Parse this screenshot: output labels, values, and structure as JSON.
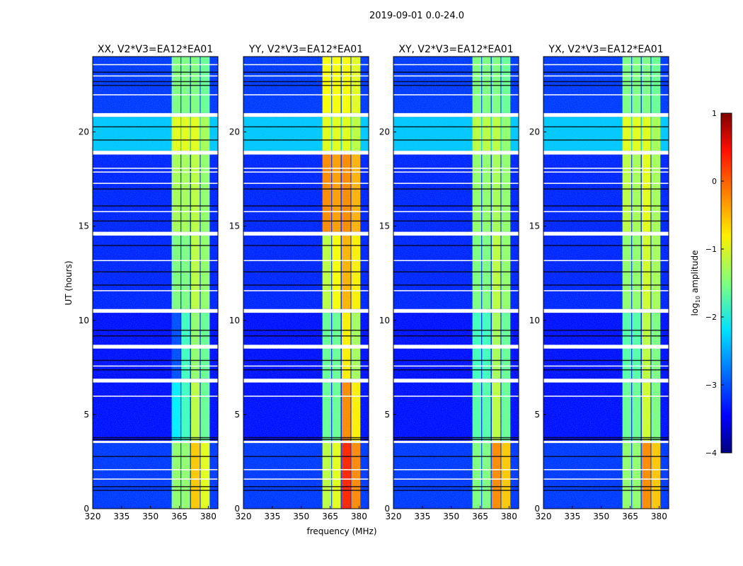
{
  "chart_data": {
    "type": "heatmap",
    "title": "2019-09-01 0.0-24.0",
    "xlabel": "frequency (MHz)",
    "ylabel": "UT (hours)",
    "xlim": [
      320,
      385
    ],
    "ylim": [
      0,
      24
    ],
    "xticks": [
      320,
      335,
      350,
      365,
      380
    ],
    "yticks": [
      0,
      5,
      10,
      15,
      20
    ],
    "colorbar": {
      "label": "log10 amplitude",
      "range": [
        -4,
        1
      ],
      "ticks": [
        1,
        0,
        -1,
        -2,
        -3,
        -4
      ],
      "tick_labels": [
        "1",
        "0",
        "−1",
        "−2",
        "−3",
        "−4"
      ],
      "colormap": "jet"
    },
    "bands_mhz": [
      [
        361,
        365.6
      ],
      [
        366,
        370.5
      ],
      [
        371,
        375.6
      ],
      [
        376,
        380.7
      ]
    ],
    "time_segments_ut": [
      [
        0,
        3.5
      ],
      [
        3.6,
        6.7
      ],
      [
        6.9,
        10.4
      ],
      [
        10.6,
        14.5
      ],
      [
        14.7,
        18.8
      ],
      [
        19.0,
        20.8
      ],
      [
        21.0,
        24
      ]
    ],
    "background_levels": [
      -3.1,
      -3.3,
      -3.3,
      -3.2,
      -3.2,
      -2.4,
      -3.1
    ],
    "flagged_ut": [
      [
        20.8,
        21.0
      ],
      [
        18.8,
        19.0
      ],
      [
        14.5,
        14.7
      ],
      [
        10.4,
        10.6
      ],
      [
        8.5,
        8.7
      ],
      [
        6.7,
        6.9
      ],
      [
        3.5,
        3.6
      ]
    ],
    "dark_lines_ut": [
      1.0,
      1.2,
      2.8,
      3.7,
      3.8,
      7.4,
      7.9,
      9.2,
      9.5,
      11.9,
      12.6,
      14.0,
      15.3,
      16.1,
      17.0,
      19.6,
      20.3,
      22.5,
      22.7,
      23.2
    ],
    "white_lines_ut": [
      1.6,
      2.1,
      6.0,
      7.6,
      11.6,
      13.2,
      15.8,
      17.3,
      17.9,
      18.1,
      22.0,
      23.0,
      23.6
    ],
    "panels": [
      {
        "title": "XX, V2*V3=EA12*EA01",
        "band_levels": [
          [
            -1.4,
            -1.4,
            -0.6,
            -1.0
          ],
          [
            -2.2,
            -1.8,
            -1.2,
            -1.6
          ],
          [
            -3.0,
            -1.8,
            -1.4,
            -1.6
          ],
          [
            -1.5,
            -1.5,
            -1.2,
            -1.4
          ],
          [
            -1.3,
            -1.3,
            -1.2,
            -1.4
          ],
          [
            -1.0,
            -1.0,
            -1.0,
            -1.3
          ],
          [
            -1.5,
            -1.5,
            -1.5,
            -1.6
          ]
        ]
      },
      {
        "title": "YY, V2*V3=EA12*EA01",
        "band_levels": [
          [
            -1.2,
            -1.0,
            0.2,
            -0.3
          ],
          [
            -1.6,
            -1.6,
            -0.3,
            -0.8
          ],
          [
            -1.6,
            -1.6,
            -0.8,
            -1.3
          ],
          [
            -1.2,
            -0.9,
            -0.5,
            -0.8
          ],
          [
            -0.3,
            -0.4,
            -0.3,
            -0.5
          ],
          [
            -1.0,
            -1.0,
            -1.0,
            -1.2
          ],
          [
            -0.9,
            -0.9,
            -0.9,
            -1.0
          ]
        ]
      },
      {
        "title": "XY, V2*V3=EA12*EA01",
        "band_levels": [
          [
            -1.5,
            -1.5,
            -0.3,
            -0.6
          ],
          [
            -1.7,
            -1.7,
            -1.2,
            -1.6
          ],
          [
            -1.8,
            -1.8,
            -1.3,
            -1.6
          ],
          [
            -1.5,
            -1.5,
            -1.2,
            -1.4
          ],
          [
            -1.4,
            -1.4,
            -1.3,
            -1.4
          ],
          [
            -1.2,
            -1.2,
            -1.2,
            -1.4
          ],
          [
            -1.5,
            -1.5,
            -1.5,
            -1.6
          ]
        ]
      },
      {
        "title": "YX, V2*V3=EA12*EA01",
        "band_levels": [
          [
            -1.4,
            -1.4,
            -0.3,
            -0.6
          ],
          [
            -1.6,
            -1.6,
            -1.1,
            -1.5
          ],
          [
            -1.7,
            -1.7,
            -1.2,
            -1.5
          ],
          [
            -1.4,
            -1.4,
            -1.1,
            -1.3
          ],
          [
            -1.2,
            -1.3,
            -1.0,
            -1.3
          ],
          [
            -1.0,
            -1.0,
            -1.0,
            -1.3
          ],
          [
            -1.5,
            -1.5,
            -1.5,
            -1.6
          ]
        ]
      }
    ]
  }
}
